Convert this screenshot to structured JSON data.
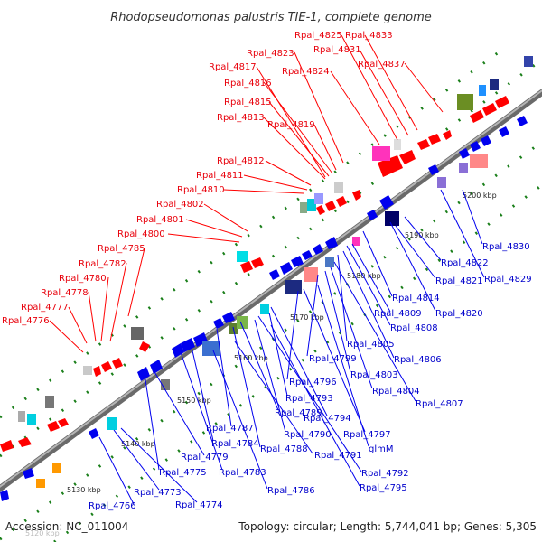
{
  "title": "Rhodopseudomonas palustris TIE-1, complete genome",
  "footer": {
    "accession": "Accession: NC_011004",
    "info": "Topology: circular; Length: 5,744,041 bp; Genes: 5,305"
  },
  "ticks": [
    "5120 kbp",
    "5130 kbp",
    "5140 kbp",
    "5150 kbp",
    "5160 kbp",
    "5170 kbp",
    "5180 kbp",
    "5190 kbp",
    "5200 kbp"
  ],
  "red_labels": [
    "Rpal_4776",
    "Rpal_4777",
    "Rpal_4778",
    "Rpal_4780",
    "Rpal_4782",
    "Rpal_4785",
    "Rpal_4800",
    "Rpal_4801",
    "Rpal_4802",
    "Rpal_4810",
    "Rpal_4811",
    "Rpal_4812",
    "Rpal_4813",
    "Rpal_4815",
    "Rpal_4816",
    "Rpal_4817",
    "Rpal_4819",
    "Rpal_4823",
    "Rpal_4824",
    "Rpal_4825",
    "Rpal_4831",
    "Rpal_4833",
    "Rpal_4837"
  ],
  "blue_labels": [
    "Rpal_4766",
    "Rpal_4773",
    "Rpal_4774",
    "Rpal_4775",
    "Rpal_4779",
    "Rpal_4783",
    "Rpal_4784",
    "Rpal_4786",
    "Rpal_4787",
    "Rpal_4788",
    "Rpal_4789",
    "Rpal_4790",
    "Rpal_4791",
    "Rpal_4792",
    "Rpal_4793",
    "Rpal_4794",
    "Rpal_4795",
    "Rpal_4796",
    "Rpal_4797",
    "glmM",
    "Rpal_4799",
    "Rpal_4803",
    "Rpal_4804",
    "Rpal_4805",
    "Rpal_4806",
    "Rpal_4807",
    "Rpal_4808",
    "Rpal_4809",
    "Rpal_4814",
    "Rpal_4820",
    "Rpal_4821",
    "Rpal_4822",
    "Rpal_4829",
    "Rpal_4830"
  ],
  "colors": {
    "forward_strand": "#ff0000",
    "reverse_strand": "#0000ee",
    "backbone": "#8c8c8c",
    "label_red": "#e8000b",
    "label_blue": "#0000cc",
    "dots": "#1a7f1a"
  }
}
